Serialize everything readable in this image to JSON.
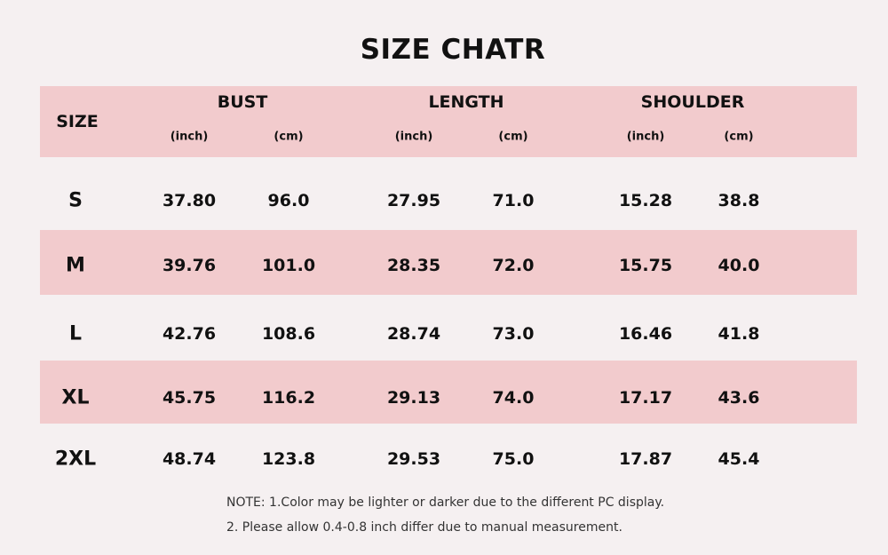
{
  "title": "SIZE CHATR",
  "header": {
    "size": "SIZE",
    "groups": [
      "BUST",
      "LENGTH",
      "SHOULDER"
    ],
    "units": [
      "(inch)",
      "(cm)",
      "(inch)",
      "(cm)",
      "(inch)",
      "(cm)"
    ]
  },
  "rows": [
    {
      "size": "S",
      "values": [
        "37.80",
        "96.0",
        "27.95",
        "71.0",
        "15.28",
        "38.8"
      ]
    },
    {
      "size": "M",
      "values": [
        "39.76",
        "101.0",
        "28.35",
        "72.0",
        "15.75",
        "40.0"
      ]
    },
    {
      "size": "L",
      "values": [
        "42.76",
        "108.6",
        "28.74",
        "73.0",
        "16.46",
        "41.8"
      ]
    },
    {
      "size": "XL",
      "values": [
        "45.75",
        "116.2",
        "29.13",
        "74.0",
        "17.17",
        "43.6"
      ]
    },
    {
      "size": "2XL",
      "values": [
        "48.74",
        "123.8",
        "29.53",
        "75.0",
        "17.87",
        "45.4"
      ]
    }
  ],
  "notes": [
    "NOTE: 1.Color may be lighter or darker due to the different PC display.",
    "2. Please allow 0.4-0.8 inch differ due to manual measurement."
  ],
  "colors": {
    "band": "#f2cbcd",
    "background": "#f5f0f1"
  }
}
